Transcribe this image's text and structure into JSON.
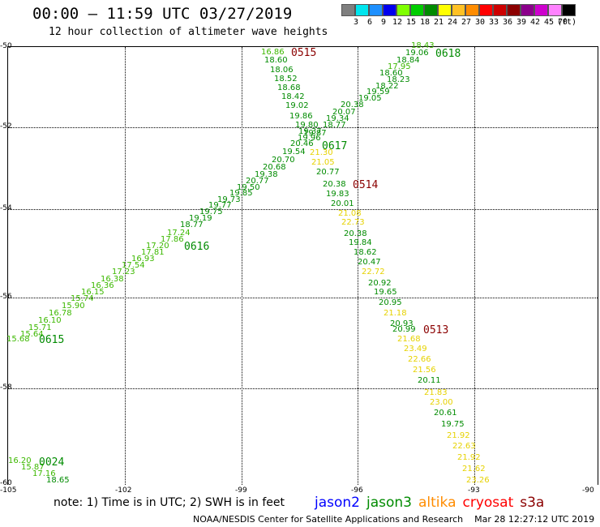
{
  "title": "00:00 — 11:59 UTC 03/27/2019",
  "subtitle": "12 hour collection of altimeter wave heights",
  "color_scale": {
    "unit": "(ft)",
    "bins": [
      {
        "label": "3",
        "color": "#7f7f7f"
      },
      {
        "label": "6",
        "color": "#00e5ee"
      },
      {
        "label": "9",
        "color": "#1e90ff"
      },
      {
        "label": "12",
        "color": "#0000ee"
      },
      {
        "label": "15",
        "color": "#7fff00"
      },
      {
        "label": "18",
        "color": "#00cd00"
      },
      {
        "label": "21",
        "color": "#008b00"
      },
      {
        "label": "24",
        "color": "#ffff00"
      },
      {
        "label": "27",
        "color": "#ffc125"
      },
      {
        "label": "30",
        "color": "#ff8c00"
      },
      {
        "label": "33",
        "color": "#ff0000"
      },
      {
        "label": "36",
        "color": "#cd0000"
      },
      {
        "label": "39",
        "color": "#8b0000"
      },
      {
        "label": "42",
        "color": "#8b008b"
      },
      {
        "label": "45",
        "color": "#cd00cd"
      },
      {
        "label": "70",
        "color": "#ff82ff"
      },
      {
        "label": "",
        "color": "#000000"
      }
    ]
  },
  "axes": {
    "lat_labels": [
      "-50",
      "-52",
      "-54",
      "-56",
      "-58",
      "-60"
    ],
    "lon_labels": [
      "-105",
      "-102",
      "-99",
      "-96",
      "-93",
      "-90"
    ]
  },
  "passes": [
    {
      "label": "0515",
      "color": "#8b0000"
    },
    {
      "label": "0618",
      "color": "#008b00"
    },
    {
      "label": "0617",
      "color": "#008b00"
    },
    {
      "label": "0514",
      "color": "#8b0000"
    },
    {
      "label": "0616",
      "color": "#008b00"
    },
    {
      "label": "0615",
      "color": "#008b00"
    },
    {
      "label": "0513",
      "color": "#8b0000"
    },
    {
      "label": "0024",
      "color": "#008b00"
    }
  ],
  "wave_heights": [
    {
      "v": "16.86",
      "c": "#3cb800"
    },
    {
      "v": "18.60",
      "c": "#008b00"
    },
    {
      "v": "18.06",
      "c": "#008b00"
    },
    {
      "v": "18.52",
      "c": "#008b00"
    },
    {
      "v": "18.68",
      "c": "#008b00"
    },
    {
      "v": "18.42",
      "c": "#008b00"
    },
    {
      "v": "19.02",
      "c": "#008b00"
    },
    {
      "v": "19.86",
      "c": "#008b00"
    },
    {
      "v": "19.80",
      "c": "#008b00"
    },
    {
      "v": "19.37",
      "c": "#008b00"
    },
    {
      "v": "19.96",
      "c": "#008b00"
    },
    {
      "v": "20.46",
      "c": "#008b00"
    },
    {
      "v": "21.30",
      "c": "#e6d200"
    },
    {
      "v": "21.05",
      "c": "#e6d200"
    },
    {
      "v": "20.77",
      "c": "#008b00"
    },
    {
      "v": "20.38",
      "c": "#008b00"
    },
    {
      "v": "19.83",
      "c": "#008b00"
    },
    {
      "v": "20.01",
      "c": "#008b00"
    },
    {
      "v": "21.08",
      "c": "#e6d200"
    },
    {
      "v": "22.73",
      "c": "#e6d200"
    },
    {
      "v": "20.38",
      "c": "#008b00"
    },
    {
      "v": "19.84",
      "c": "#008b00"
    },
    {
      "v": "18.62",
      "c": "#008b00"
    },
    {
      "v": "20.47",
      "c": "#008b00"
    },
    {
      "v": "22.72",
      "c": "#e6d200"
    },
    {
      "v": "20.92",
      "c": "#008b00"
    },
    {
      "v": "19.65",
      "c": "#008b00"
    },
    {
      "v": "20.95",
      "c": "#008b00"
    },
    {
      "v": "21.18",
      "c": "#e6d200"
    },
    {
      "v": "20.93",
      "c": "#008b00"
    },
    {
      "v": "20.99",
      "c": "#008b00"
    },
    {
      "v": "21.68",
      "c": "#e6d200"
    },
    {
      "v": "23.49",
      "c": "#e6d200"
    },
    {
      "v": "22.66",
      "c": "#e6d200"
    },
    {
      "v": "21.56",
      "c": "#e6d200"
    },
    {
      "v": "20.11",
      "c": "#008b00"
    },
    {
      "v": "21.83",
      "c": "#e6d200"
    },
    {
      "v": "23.00",
      "c": "#e6d200"
    },
    {
      "v": "20.61",
      "c": "#008b00"
    },
    {
      "v": "19.75",
      "c": "#008b00"
    },
    {
      "v": "21.92",
      "c": "#e6d200"
    },
    {
      "v": "22.63",
      "c": "#e6d200"
    },
    {
      "v": "21.92",
      "c": "#e6d200"
    },
    {
      "v": "21.62",
      "c": "#e6d200"
    },
    {
      "v": "23.26",
      "c": "#e6d200"
    },
    {
      "v": "18.43",
      "c": "#3cb800"
    },
    {
      "v": "19.06",
      "c": "#008b00"
    },
    {
      "v": "18.84",
      "c": "#008b00"
    },
    {
      "v": "17.95",
      "c": "#3cb800"
    },
    {
      "v": "18.60",
      "c": "#008b00"
    },
    {
      "v": "18.23",
      "c": "#008b00"
    },
    {
      "v": "18.22",
      "c": "#008b00"
    },
    {
      "v": "19.59",
      "c": "#008b00"
    },
    {
      "v": "19.05",
      "c": "#008b00"
    },
    {
      "v": "20.38",
      "c": "#008b00"
    },
    {
      "v": "20.07",
      "c": "#008b00"
    },
    {
      "v": "19.34",
      "c": "#008b00"
    },
    {
      "v": "18.77",
      "c": "#008b00"
    },
    {
      "v": "19.87",
      "c": "#008b00"
    },
    {
      "v": "19.54",
      "c": "#008b00"
    },
    {
      "v": "20.70",
      "c": "#008b00"
    },
    {
      "v": "20.68",
      "c": "#008b00"
    },
    {
      "v": "19.38",
      "c": "#008b00"
    },
    {
      "v": "20.77",
      "c": "#008b00"
    },
    {
      "v": "19.50",
      "c": "#008b00"
    },
    {
      "v": "19.85",
      "c": "#008b00"
    },
    {
      "v": "19.73",
      "c": "#008b00"
    },
    {
      "v": "19.77",
      "c": "#008b00"
    },
    {
      "v": "19.75",
      "c": "#008b00"
    },
    {
      "v": "19.19",
      "c": "#008b00"
    },
    {
      "v": "18.77",
      "c": "#008b00"
    },
    {
      "v": "17.24",
      "c": "#3cb800"
    },
    {
      "v": "17.86",
      "c": "#3cb800"
    },
    {
      "v": "17.20",
      "c": "#3cb800"
    },
    {
      "v": "17.81",
      "c": "#3cb800"
    },
    {
      "v": "16.93",
      "c": "#3cb800"
    },
    {
      "v": "17.54",
      "c": "#3cb800"
    },
    {
      "v": "17.23",
      "c": "#3cb800"
    },
    {
      "v": "16.38",
      "c": "#3cb800"
    },
    {
      "v": "16.36",
      "c": "#3cb800"
    },
    {
      "v": "16.15",
      "c": "#3cb800"
    },
    {
      "v": "15.74",
      "c": "#3cb800"
    },
    {
      "v": "15.90",
      "c": "#3cb800"
    },
    {
      "v": "16.78",
      "c": "#3cb800"
    },
    {
      "v": "16.10",
      "c": "#3cb800"
    },
    {
      "v": "15.71",
      "c": "#3cb800"
    },
    {
      "v": "15.64",
      "c": "#3cb800"
    },
    {
      "v": "15.68",
      "c": "#3cb800"
    },
    {
      "v": "16.20",
      "c": "#3cb800"
    },
    {
      "v": "15.87",
      "c": "#3cb800"
    },
    {
      "v": "17.16",
      "c": "#3cb800"
    },
    {
      "v": "18.65",
      "c": "#008b00"
    }
  ],
  "note": "note: 1) Time is in UTC; 2) SWH is in feet",
  "legend": [
    {
      "label": "jason2",
      "color": "#0000ff"
    },
    {
      "label": "jason3",
      "color": "#008b00"
    },
    {
      "label": "altika",
      "color": "#ff8c00"
    },
    {
      "label": "cryosat",
      "color": "#ff0000"
    },
    {
      "label": "s3a",
      "color": "#8b0000"
    }
  ],
  "footer": "NOAA/NESDIS Center for Satellite Applications and Research    Mar 28 12:27:12 UTC 2019"
}
